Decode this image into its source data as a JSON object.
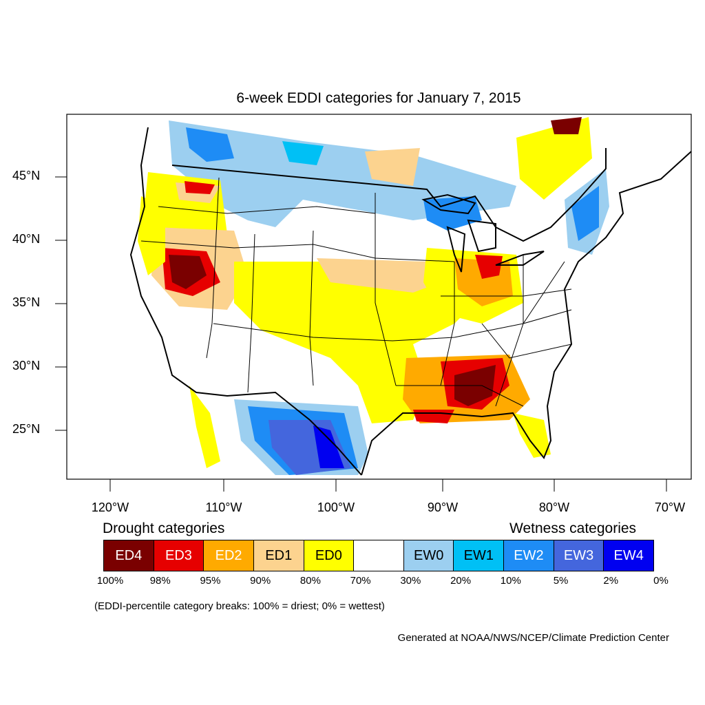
{
  "title": "6-week EDDI categories for January 7, 2015",
  "lat_labels": [
    "45°N",
    "40°N",
    "35°N",
    "30°N",
    "25°N"
  ],
  "lon_labels": [
    "120°W",
    "110°W",
    "100°W",
    "90°W",
    "80°W",
    "70°W"
  ],
  "legend": {
    "drought_heading": "Drought categories",
    "wetness_heading": "Wetness categories",
    "boxes": [
      {
        "label": "ED4",
        "color": "#7a0000",
        "text_color": "#ffffff"
      },
      {
        "label": "ED3",
        "color": "#e60000",
        "text_color": "#ffffff"
      },
      {
        "label": "ED2",
        "color": "#ffaa00",
        "text_color": "#ffffff"
      },
      {
        "label": "ED1",
        "color": "#fcd38f",
        "text_color": "#000000"
      },
      {
        "label": "ED0",
        "color": "#ffff00",
        "text_color": "#000000"
      },
      {
        "label": "",
        "color": "#ffffff",
        "text_color": "#000000"
      },
      {
        "label": "EW0",
        "color": "#9ccff0",
        "text_color": "#000000"
      },
      {
        "label": "EW1",
        "color": "#00c0f5",
        "text_color": "#000000"
      },
      {
        "label": "EW2",
        "color": "#1e8cf5",
        "text_color": "#ffffff"
      },
      {
        "label": "EW3",
        "color": "#4466dd",
        "text_color": "#ffffff"
      },
      {
        "label": "EW4",
        "color": "#0000f0",
        "text_color": "#ffffff"
      }
    ],
    "percent_labels": [
      "100%",
      "98%",
      "95%",
      "90%",
      "80%",
      "70%",
      "30%",
      "20%",
      "10%",
      "5%",
      "2%",
      "0%"
    ]
  },
  "note": "(EDDI-percentile category breaks: 100% = driest; 0% = wettest)",
  "credit": "Generated at NOAA/NWS/NCEP/Climate Prediction Center"
}
